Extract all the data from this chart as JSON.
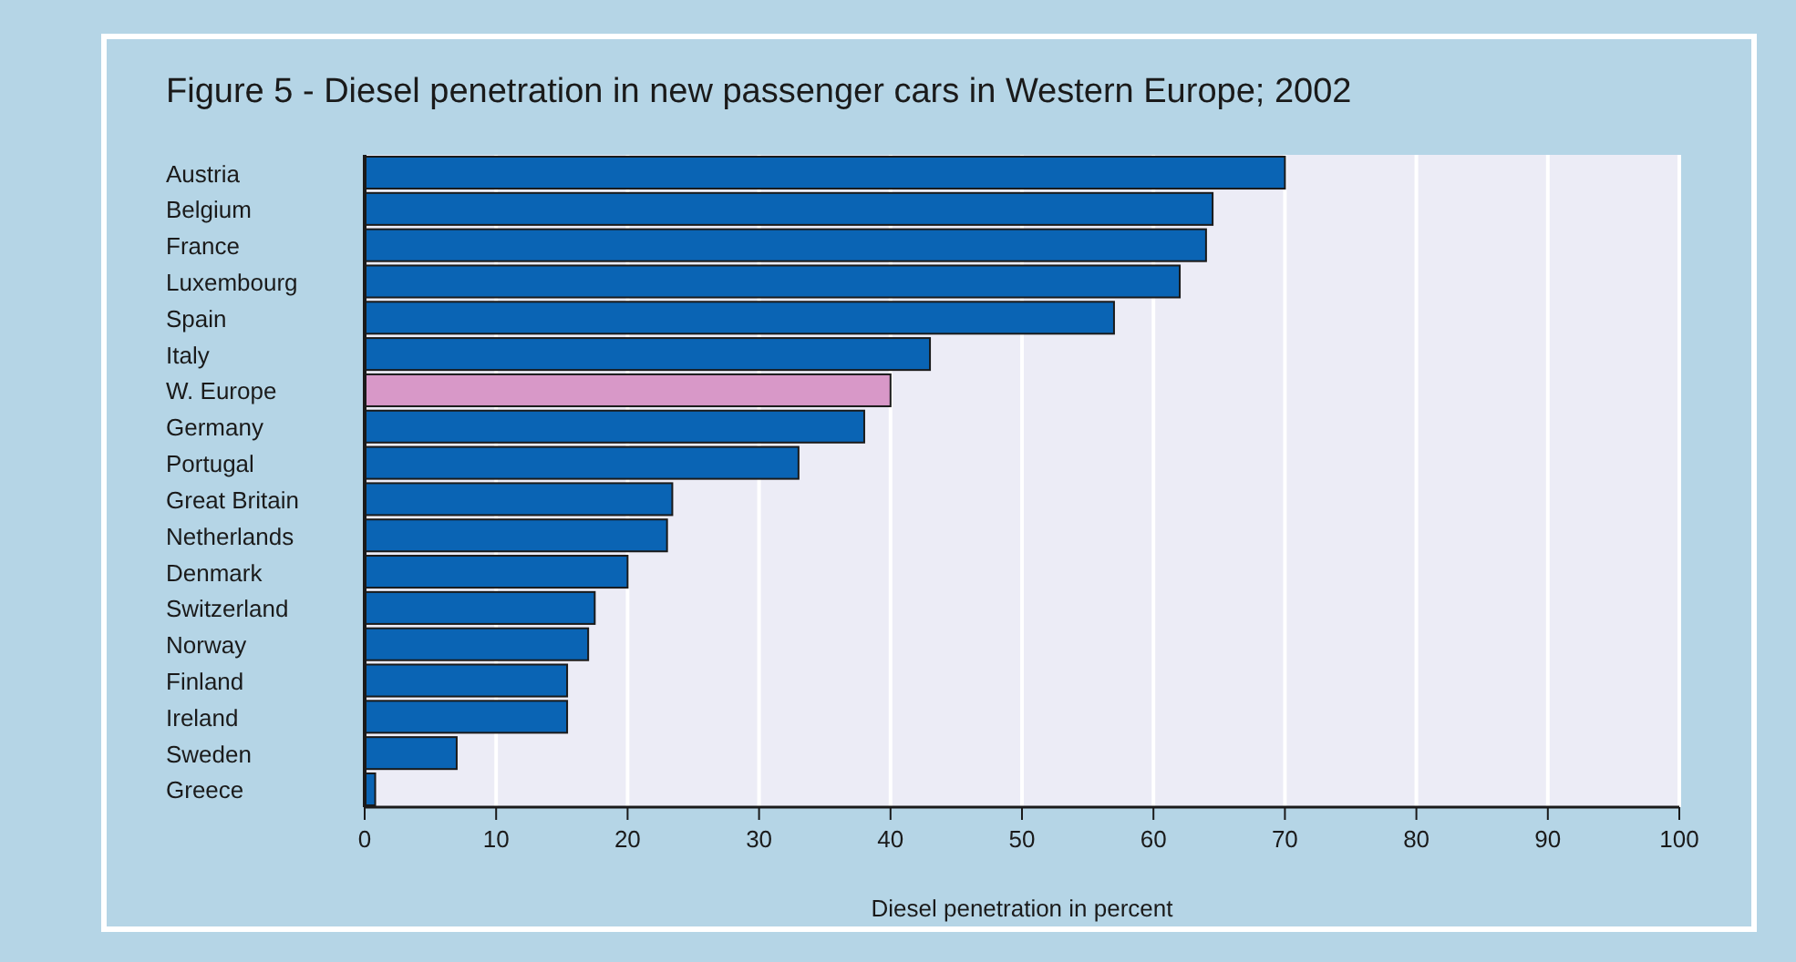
{
  "chart_data": {
    "type": "bar",
    "orientation": "horizontal",
    "title": "Figure 5 - Diesel penetration in new passenger cars in Western Europe; 2002",
    "xlabel": "Diesel penetration in percent",
    "categories": [
      "Austria",
      "Belgium",
      "France",
      "Luxembourg",
      "Spain",
      "Italy",
      "W. Europe",
      "Germany",
      "Portugal",
      "Great Britain",
      "Netherlands",
      "Denmark",
      "Switzerland",
      "Norway",
      "Finland",
      "Ireland",
      "Sweden",
      "Greece"
    ],
    "values": [
      70,
      64.5,
      64,
      62,
      57,
      43,
      40,
      38,
      33,
      23.4,
      23,
      20,
      17.5,
      17,
      15.4,
      15.4,
      7,
      0.8
    ],
    "colors": [
      "#0a64b4",
      "#0a64b4",
      "#0a64b4",
      "#0a64b4",
      "#0a64b4",
      "#0a64b4",
      "#d898c8",
      "#0a64b4",
      "#0a64b4",
      "#0a64b4",
      "#0a64b4",
      "#0a64b4",
      "#0a64b4",
      "#0a64b4",
      "#0a64b4",
      "#0a64b4",
      "#0a64b4",
      "#0a64b4"
    ],
    "xlim": [
      0,
      100
    ],
    "xticks": [
      0,
      10,
      20,
      30,
      40,
      50,
      60,
      70,
      80,
      90,
      100
    ],
    "grid": "x"
  }
}
